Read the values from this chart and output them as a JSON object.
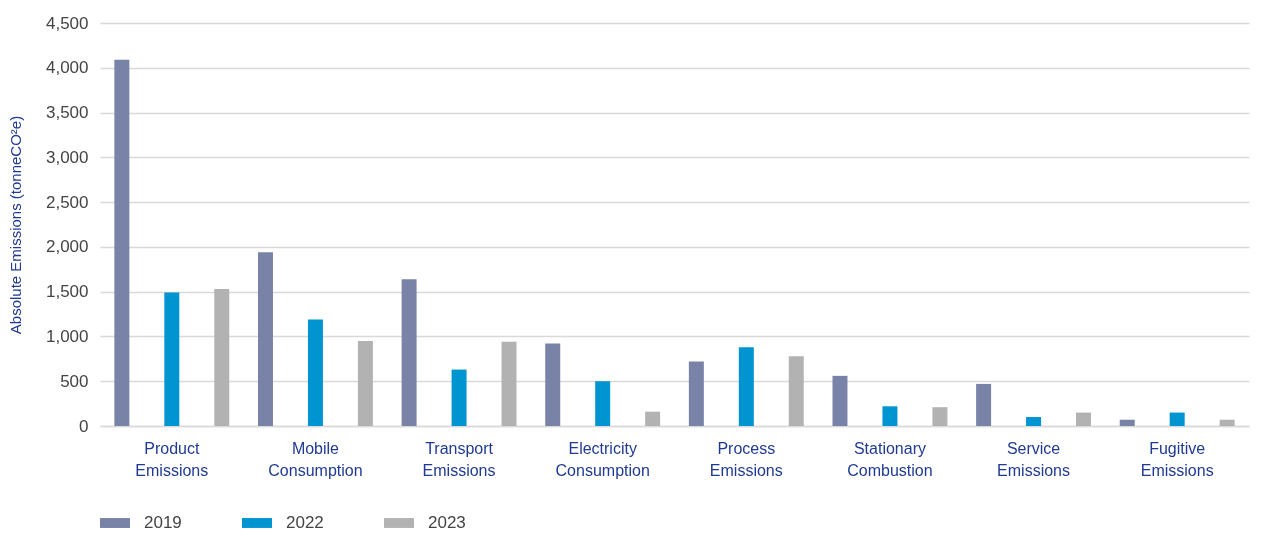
{
  "chart_data": {
    "type": "bar",
    "ylabel": "Absolute Emissions (tonneCO²e)",
    "categories": [
      "Product Emissions",
      "Mobile Consumption",
      "Transport Emissions",
      "Electricity Consumption",
      "Process Emissions",
      "Stationary Combustion",
      "Service Emissions",
      "Fugitive Emissions"
    ],
    "series": [
      {
        "name": "2019",
        "color": "#7983a8",
        "values": [
          4090,
          1940,
          1640,
          920,
          720,
          560,
          470,
          70
        ]
      },
      {
        "name": "2022",
        "color": "#0094d1",
        "values": [
          1490,
          1190,
          630,
          500,
          880,
          220,
          100,
          150
        ]
      },
      {
        "name": "2023",
        "color": "#b2b2b2",
        "values": [
          1530,
          950,
          940,
          160,
          780,
          210,
          150,
          70
        ]
      }
    ],
    "ylim": [
      0,
      4500
    ],
    "yticks": [
      0,
      500,
      {
        "value": 1000,
        "label": "1,000"
      },
      {
        "value": 1500,
        "label": "1,500"
      },
      {
        "value": 2000,
        "label": "2,000"
      },
      {
        "value": 2500,
        "label": "2,500"
      },
      {
        "value": 3000,
        "label": "3,000"
      },
      {
        "value": 3500,
        "label": "3,500"
      },
      {
        "value": 4000,
        "label": "4,000"
      },
      {
        "value": 4500,
        "label": "4,500"
      }
    ],
    "grid": "y",
    "legend": "bottom"
  }
}
